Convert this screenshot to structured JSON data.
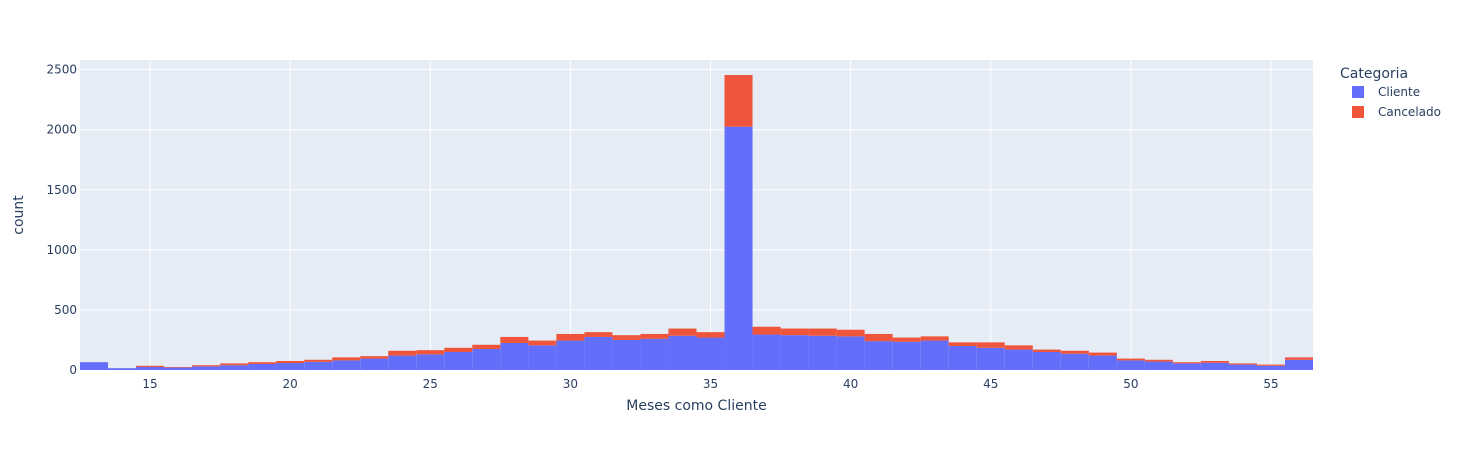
{
  "legend": {
    "title": "Categoria",
    "items": [
      {
        "label": "Cliente",
        "color": "#636efa"
      },
      {
        "label": "Cancelado",
        "color": "#ef553b"
      }
    ]
  },
  "chart_data": {
    "type": "bar",
    "stacked": true,
    "title": "",
    "xlabel": "Meses como Cliente",
    "ylabel": "count",
    "xlim": [
      12.5,
      56.5
    ],
    "ylim": [
      0,
      2580
    ],
    "x_ticks": [
      15,
      20,
      25,
      30,
      35,
      40,
      45,
      50,
      55
    ],
    "y_ticks": [
      0,
      500,
      1000,
      1500,
      2000,
      2500
    ],
    "x": [
      13,
      14,
      15,
      16,
      17,
      18,
      19,
      20,
      21,
      22,
      23,
      24,
      25,
      26,
      27,
      28,
      29,
      30,
      31,
      32,
      33,
      34,
      35,
      36,
      37,
      38,
      39,
      40,
      41,
      42,
      43,
      44,
      45,
      46,
      47,
      48,
      49,
      50,
      51,
      52,
      53,
      54,
      55,
      56
    ],
    "series": [
      {
        "name": "Cliente",
        "color": "#636efa",
        "values": [
          65,
          15,
          25,
          20,
          30,
          40,
          50,
          58,
          68,
          80,
          95,
          120,
          130,
          150,
          175,
          225,
          205,
          245,
          275,
          250,
          260,
          285,
          270,
          2025,
          295,
          290,
          285,
          280,
          240,
          235,
          245,
          200,
          185,
          170,
          150,
          135,
          120,
          80,
          70,
          55,
          60,
          45,
          35,
          85
        ]
      },
      {
        "name": "Cancelado",
        "color": "#ef553b",
        "values": [
          0,
          0,
          10,
          5,
          10,
          15,
          15,
          17,
          17,
          25,
          20,
          40,
          35,
          35,
          35,
          50,
          40,
          55,
          40,
          40,
          40,
          60,
          45,
          430,
          65,
          55,
          60,
          55,
          60,
          35,
          35,
          30,
          45,
          35,
          20,
          25,
          25,
          15,
          15,
          10,
          15,
          10,
          10,
          20
        ]
      }
    ],
    "legend_position": "top-right",
    "grid": true
  }
}
